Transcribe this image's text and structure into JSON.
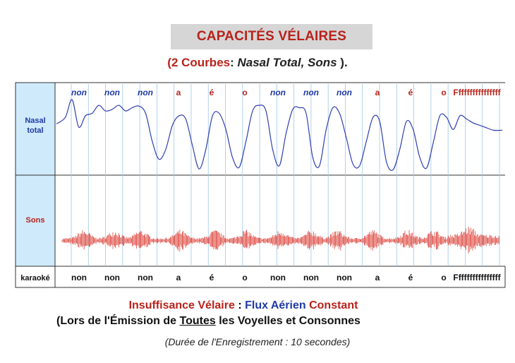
{
  "title": "CAPACITÉS VÉLAIRES",
  "subtitle": {
    "open": "(",
    "count": "2 Courbes",
    "colon": ":  ",
    "names": "Nasal Total,  Sons",
    "close": " )."
  },
  "colors": {
    "accent_red": "#b8221b",
    "curve_blue": "#2f3fb0",
    "label_blue": "#1f3aa6",
    "panel_bg": "#cfeafb",
    "grid": "#9cc7e6"
  },
  "chart_data": {
    "type": "line",
    "panels": [
      {
        "label_line1": "Nasal",
        "label_line2": "total",
        "series": "Nasal total",
        "color": "#2f3fb0"
      },
      {
        "label_line1": "Sons",
        "series": "Sons",
        "color": "#d8281f"
      }
    ],
    "karaoke_label": "karaoké",
    "syllables": [
      {
        "text": "non",
        "kind": "nasal"
      },
      {
        "text": "non",
        "kind": "nasal"
      },
      {
        "text": "non",
        "kind": "nasal"
      },
      {
        "text": "a",
        "kind": "oral"
      },
      {
        "text": "é",
        "kind": "oral"
      },
      {
        "text": "o",
        "kind": "oral"
      },
      {
        "text": "non",
        "kind": "nasal"
      },
      {
        "text": "non",
        "kind": "nasal"
      },
      {
        "text": "non",
        "kind": "nasal"
      },
      {
        "text": "a",
        "kind": "oral"
      },
      {
        "text": "é",
        "kind": "oral"
      },
      {
        "text": "o",
        "kind": "oral"
      },
      {
        "text": "Ffffffffffffffff",
        "kind": "oral"
      }
    ],
    "nasal_total": {
      "x": [
        0,
        0.02,
        0.035,
        0.05,
        0.065,
        0.08,
        0.095,
        0.11,
        0.125,
        0.14,
        0.155,
        0.17,
        0.185,
        0.2,
        0.215,
        0.23,
        0.245,
        0.26,
        0.275,
        0.29,
        0.305,
        0.32,
        0.335,
        0.35,
        0.365,
        0.38,
        0.395,
        0.41,
        0.425,
        0.44,
        0.455,
        0.47,
        0.485,
        0.5,
        0.515,
        0.53,
        0.545,
        0.56,
        0.575,
        0.59,
        0.605,
        0.62,
        0.635,
        0.65,
        0.665,
        0.68,
        0.695,
        0.71,
        0.725,
        0.74,
        0.755,
        0.77,
        0.785,
        0.8,
        0.815,
        0.83,
        0.845,
        0.86,
        0.875,
        0.89,
        0.905,
        0.92,
        0.935,
        0.95,
        0.965,
        0.98,
        1.0
      ],
      "y": [
        0.62,
        0.7,
        0.92,
        0.58,
        0.72,
        0.75,
        0.85,
        0.78,
        0.8,
        0.85,
        0.78,
        0.82,
        0.84,
        0.75,
        0.4,
        0.18,
        0.3,
        0.6,
        0.72,
        0.68,
        0.35,
        0.06,
        0.3,
        0.72,
        0.75,
        0.55,
        0.2,
        0.08,
        0.4,
        0.78,
        0.85,
        0.78,
        0.3,
        0.1,
        0.5,
        0.8,
        0.82,
        0.75,
        0.2,
        0.1,
        0.55,
        0.82,
        0.75,
        0.45,
        0.12,
        0.1,
        0.4,
        0.7,
        0.65,
        0.15,
        0.05,
        0.3,
        0.65,
        0.55,
        0.2,
        0.07,
        0.38,
        0.72,
        0.7,
        0.55,
        0.72,
        0.68,
        0.63,
        0.6,
        0.57,
        0.54,
        0.54
      ]
    },
    "sons": {
      "bursts": [
        0.05,
        0.12,
        0.18,
        0.27,
        0.35,
        0.42,
        0.5,
        0.57,
        0.63,
        0.71,
        0.79,
        0.85,
        0.93
      ]
    }
  },
  "footer": {
    "line1_a": "Insuffisance Vélaire",
    "line1_sep": " : ",
    "line1_b": "Flux Aérien",
    "line1_c": " Constant",
    "line2_a": "(Lors de l'Émission de ",
    "line2_u": "Toutes",
    "line2_b": " les Voyelles et Consonnes",
    "line3": "(Durée de l'Enregistrement : 10 secondes)"
  }
}
